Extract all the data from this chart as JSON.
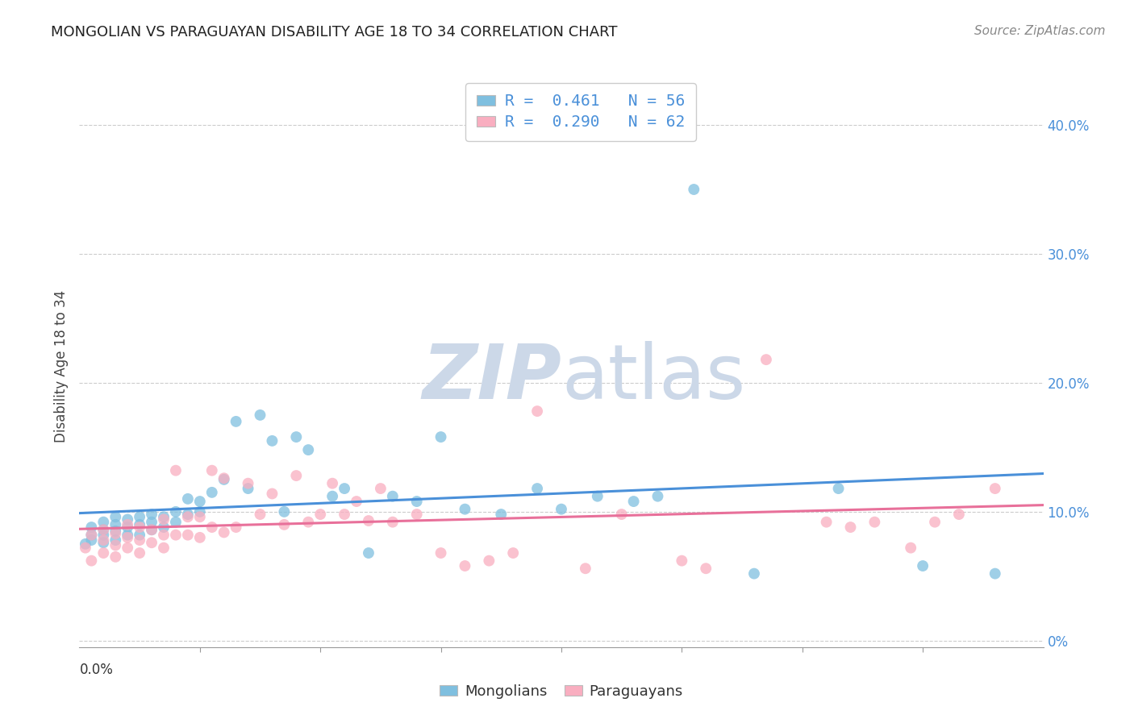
{
  "title": "MONGOLIAN VS PARAGUAYAN DISABILITY AGE 18 TO 34 CORRELATION CHART",
  "source": "Source: ZipAtlas.com",
  "ylabel": "Disability Age 18 to 34",
  "xlim": [
    0.0,
    0.08
  ],
  "ylim": [
    -0.005,
    0.43
  ],
  "right_ytick_vals": [
    0.0,
    0.1,
    0.2,
    0.3,
    0.4
  ],
  "right_ytick_labels": [
    "0%",
    "10.0%",
    "20.0%",
    "30.0%",
    "40.0%"
  ],
  "mongolian_R": 0.461,
  "mongolian_N": 56,
  "paraguayan_R": 0.29,
  "paraguayan_N": 62,
  "mongolian_color": "#7fbfdf",
  "paraguayan_color": "#f9aec0",
  "mongolian_line_color": "#4a90d9",
  "paraguayan_line_color": "#e8709a",
  "watermark_text": "ZIPatlas",
  "watermark_color": "#ccd8e8",
  "legend1_label1": "R =  0.461   N = 56",
  "legend1_label2": "R =  0.290   N = 62",
  "legend_text_color": "#4a90d9",
  "mongolian_scatter_x": [
    0.0005,
    0.001,
    0.001,
    0.001,
    0.002,
    0.002,
    0.002,
    0.002,
    0.003,
    0.003,
    0.003,
    0.003,
    0.004,
    0.004,
    0.004,
    0.005,
    0.005,
    0.005,
    0.006,
    0.006,
    0.006,
    0.007,
    0.007,
    0.008,
    0.008,
    0.009,
    0.009,
    0.01,
    0.01,
    0.011,
    0.012,
    0.013,
    0.014,
    0.015,
    0.016,
    0.017,
    0.018,
    0.019,
    0.021,
    0.022,
    0.024,
    0.026,
    0.028,
    0.03,
    0.032,
    0.035,
    0.038,
    0.04,
    0.043,
    0.046,
    0.048,
    0.051,
    0.056,
    0.063,
    0.07,
    0.076
  ],
  "mongolian_scatter_y": [
    0.075,
    0.078,
    0.082,
    0.088,
    0.076,
    0.082,
    0.086,
    0.092,
    0.078,
    0.085,
    0.09,
    0.096,
    0.082,
    0.088,
    0.094,
    0.082,
    0.09,
    0.096,
    0.086,
    0.092,
    0.098,
    0.088,
    0.096,
    0.092,
    0.1,
    0.098,
    0.11,
    0.1,
    0.108,
    0.115,
    0.125,
    0.17,
    0.118,
    0.175,
    0.155,
    0.1,
    0.158,
    0.148,
    0.112,
    0.118,
    0.068,
    0.112,
    0.108,
    0.158,
    0.102,
    0.098,
    0.118,
    0.102,
    0.112,
    0.108,
    0.112,
    0.35,
    0.052,
    0.118,
    0.058,
    0.052
  ],
  "paraguayan_scatter_x": [
    0.0005,
    0.001,
    0.001,
    0.002,
    0.002,
    0.002,
    0.003,
    0.003,
    0.003,
    0.004,
    0.004,
    0.004,
    0.005,
    0.005,
    0.005,
    0.006,
    0.006,
    0.007,
    0.007,
    0.007,
    0.008,
    0.008,
    0.009,
    0.009,
    0.01,
    0.01,
    0.011,
    0.011,
    0.012,
    0.012,
    0.013,
    0.014,
    0.015,
    0.016,
    0.017,
    0.018,
    0.019,
    0.02,
    0.021,
    0.022,
    0.023,
    0.024,
    0.025,
    0.026,
    0.028,
    0.03,
    0.032,
    0.034,
    0.036,
    0.038,
    0.042,
    0.045,
    0.05,
    0.052,
    0.057,
    0.062,
    0.064,
    0.066,
    0.069,
    0.071,
    0.073,
    0.076
  ],
  "paraguayan_scatter_y": [
    0.072,
    0.062,
    0.082,
    0.068,
    0.078,
    0.086,
    0.065,
    0.074,
    0.083,
    0.072,
    0.08,
    0.09,
    0.068,
    0.078,
    0.088,
    0.076,
    0.086,
    0.072,
    0.082,
    0.094,
    0.082,
    0.132,
    0.082,
    0.096,
    0.08,
    0.096,
    0.088,
    0.132,
    0.084,
    0.126,
    0.088,
    0.122,
    0.098,
    0.114,
    0.09,
    0.128,
    0.092,
    0.098,
    0.122,
    0.098,
    0.108,
    0.093,
    0.118,
    0.092,
    0.098,
    0.068,
    0.058,
    0.062,
    0.068,
    0.178,
    0.056,
    0.098,
    0.062,
    0.056,
    0.218,
    0.092,
    0.088,
    0.092,
    0.072,
    0.092,
    0.098,
    0.118
  ]
}
